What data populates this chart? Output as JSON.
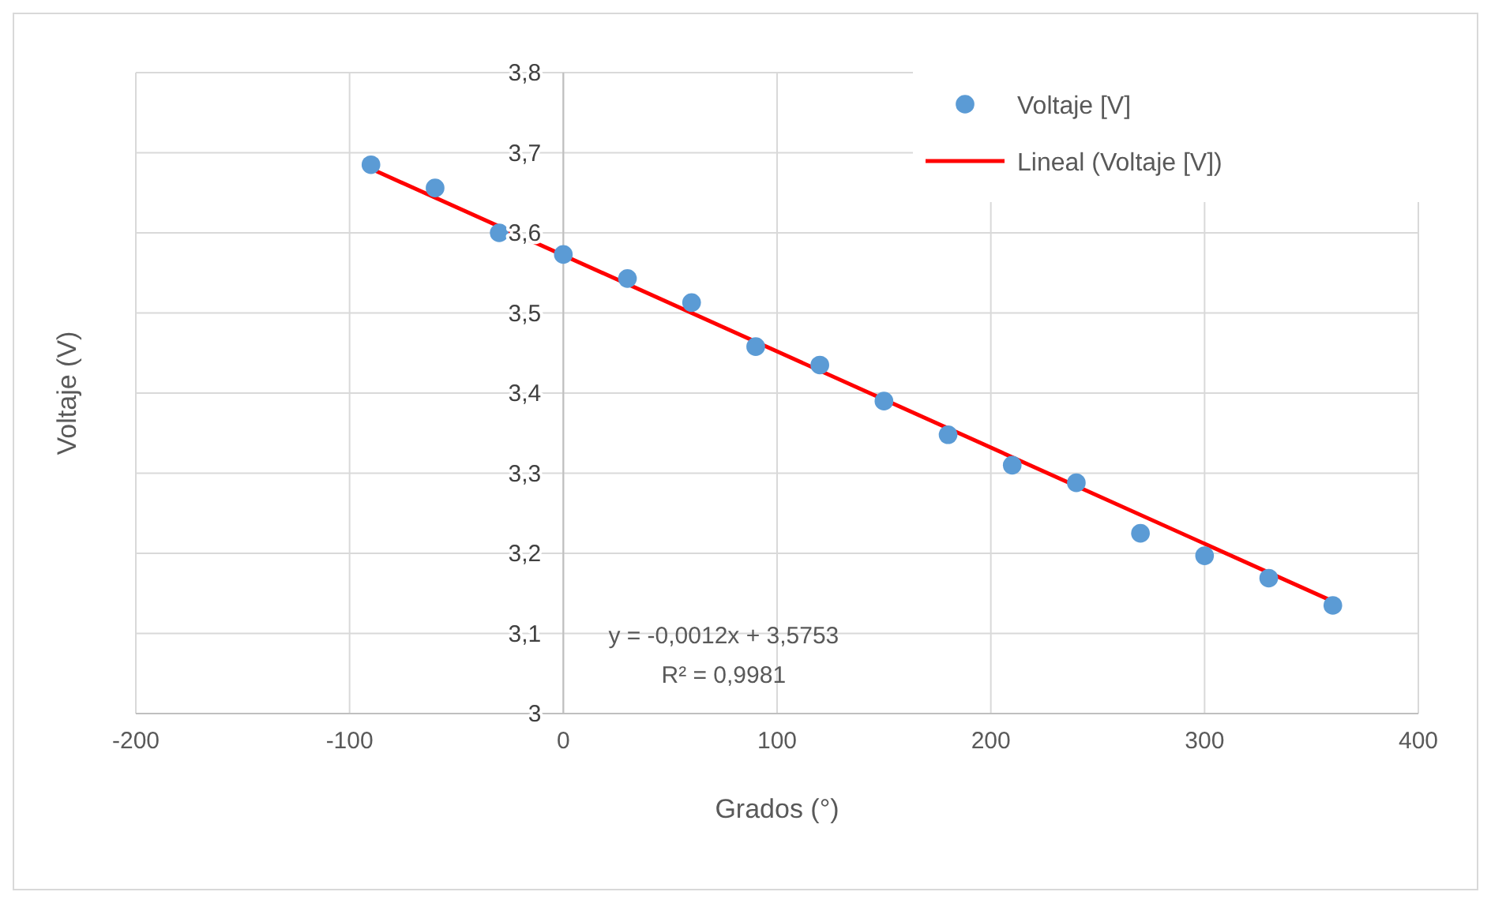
{
  "chart_data": {
    "type": "scatter",
    "xlabel": "Grados (°)",
    "ylabel": "Voltaje (V)",
    "xlim": [
      -200,
      400
    ],
    "xticks": [
      -200,
      -100,
      0,
      100,
      200,
      300,
      400
    ],
    "ylim": [
      3,
      3.8
    ],
    "yticks": [
      3,
      {
        "value": 3.1,
        "label": "3,1"
      },
      {
        "value": 3.2,
        "label": "3,2"
      },
      {
        "value": 3.3,
        "label": "3,3"
      },
      {
        "value": 3.4,
        "label": "3,4"
      },
      {
        "value": 3.5,
        "label": "3,5"
      },
      {
        "value": 3.6,
        "label": "3,6"
      },
      {
        "value": 3.7,
        "label": "3,7"
      },
      {
        "value": 3.8,
        "label": "3,8"
      }
    ],
    "grid": true,
    "legend": "top right",
    "x": [
      -90,
      -60,
      -30,
      0,
      30,
      60,
      90,
      120,
      150,
      180,
      210,
      240,
      270,
      300,
      330,
      360
    ],
    "series": [
      {
        "name": "Voltaje [V]",
        "color": "#5b9bd5",
        "marker": "circle",
        "values": [
          3.685,
          3.656,
          3.6,
          3.573,
          3.543,
          3.513,
          3.458,
          3.435,
          3.39,
          3.348,
          3.31,
          3.288,
          3.225,
          3.197,
          3.169,
          3.135
        ]
      },
      {
        "name": "Lineal (Voltaje [V])",
        "type": "line",
        "color": "#ff0000",
        "x": [
          -90,
          360
        ],
        "values": [
          3.68,
          3.14
        ],
        "line_style": "solid"
      }
    ],
    "annotations": [
      "y = -0,0012x + 3,5753",
      "R² = 0,9981"
    ]
  }
}
